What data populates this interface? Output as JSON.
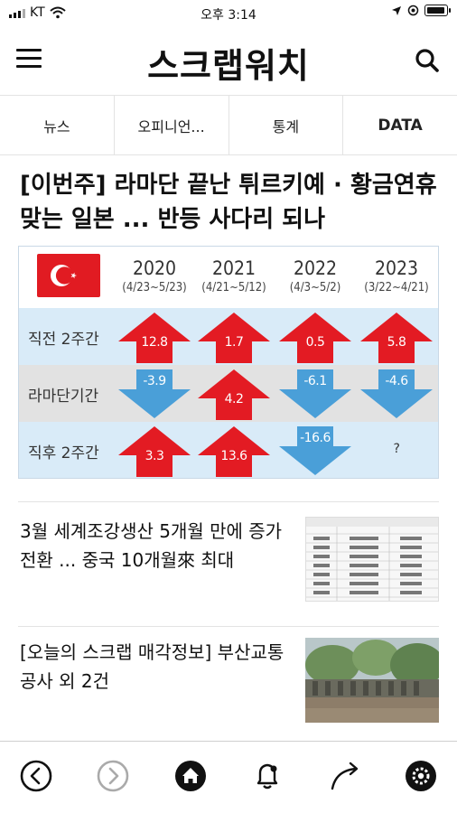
{
  "status_bar": {
    "carrier": "KT",
    "time": "오후 3:14"
  },
  "header": {
    "logo_text": "스크랩워치",
    "menu_icon": "hamburger-icon",
    "search_icon": "search-icon"
  },
  "tabs": [
    {
      "label": "뉴스"
    },
    {
      "label": "오피니언..."
    },
    {
      "label": "통계"
    },
    {
      "label": "DATA"
    }
  ],
  "headline": "[이번주] 라마단 끝난 튀르키예 · 황금연휴 맞는 일본 ... 반등 사다리 되나",
  "infographic": {
    "columns": [
      {
        "year": "2020",
        "range": "(4/23~5/23)"
      },
      {
        "year": "2021",
        "range": "(4/21~5/12)"
      },
      {
        "year": "2022",
        "range": "(4/3~5/2)"
      },
      {
        "year": "2023",
        "range": "(3/22~4/21)"
      }
    ],
    "rows": [
      {
        "label": "직전 2주간",
        "values": [
          "12.8",
          "1.7",
          "0.5",
          "5.8"
        ],
        "direction": [
          "up",
          "up",
          "up",
          "up"
        ]
      },
      {
        "label": "라마단기간",
        "values": [
          "-3.9",
          "4.2",
          "-6.1",
          "-4.6"
        ],
        "direction": [
          "down",
          "up",
          "down",
          "down"
        ]
      },
      {
        "label": "직후 2주간",
        "values": [
          "3.3",
          "13.6",
          "-16.6",
          "?"
        ],
        "direction": [
          "up",
          "up",
          "down",
          "none"
        ]
      }
    ],
    "colors": {
      "up": "#e31b23",
      "down": "#4a9fd8",
      "row_light": "#d9ebf8",
      "row_gray": "#e2e2e2"
    }
  },
  "articles": [
    {
      "title": "3월 세계조강생산 5개월 만에 증가 전환 ... 중국 10개월來 최대"
    },
    {
      "title": "[오늘의 스크랩 매각정보] 부산교통공사 외 2건"
    }
  ],
  "bottom_bar": [
    {
      "icon": "back-icon"
    },
    {
      "icon": "forward-icon"
    },
    {
      "icon": "home-icon"
    },
    {
      "icon": "bell-icon"
    },
    {
      "icon": "share-icon"
    },
    {
      "icon": "settings-icon"
    }
  ]
}
